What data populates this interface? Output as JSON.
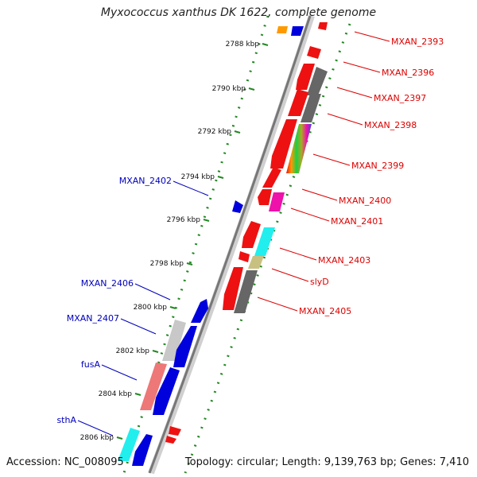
{
  "title": "Myxococcus xanthus DK 1622, complete genome",
  "accession": "Accession: NC_008095",
  "summary": "Topology: circular; Length: 9,139,763 bp; Genes: 7,410",
  "ticks": [
    "2788 kbp",
    "2790 kbp",
    "2792 kbp",
    "2794 kbp",
    "2796 kbp",
    "2798 kbp",
    "2800 kbp",
    "2802 kbp",
    "2804 kbp",
    "2806 kbp"
  ],
  "labels_right": [
    "MXAN_2393",
    "MXAN_2396",
    "MXAN_2397",
    "MXAN_2398",
    "MXAN_2399",
    "MXAN_2400",
    "MXAN_2401",
    "MXAN_2403",
    "slyD",
    "MXAN_2405"
  ],
  "labels_left": [
    "MXAN_2402",
    "MXAN_2406",
    "MXAN_2407",
    "fusA",
    "sthA"
  ],
  "colors": {
    "red": "#ee1111",
    "gray": "#666666",
    "light_gray": "#c8c8c8",
    "blue": "#0000dd",
    "cyan": "#22eeee",
    "magenta": "#ee11aa",
    "olive": "#c8c080",
    "orange": "#ff9900",
    "pink": "#ee7777",
    "backbone": "#777777",
    "tick": "#228822",
    "label_red": "#dd0000",
    "label_blue": "#0000bb"
  }
}
